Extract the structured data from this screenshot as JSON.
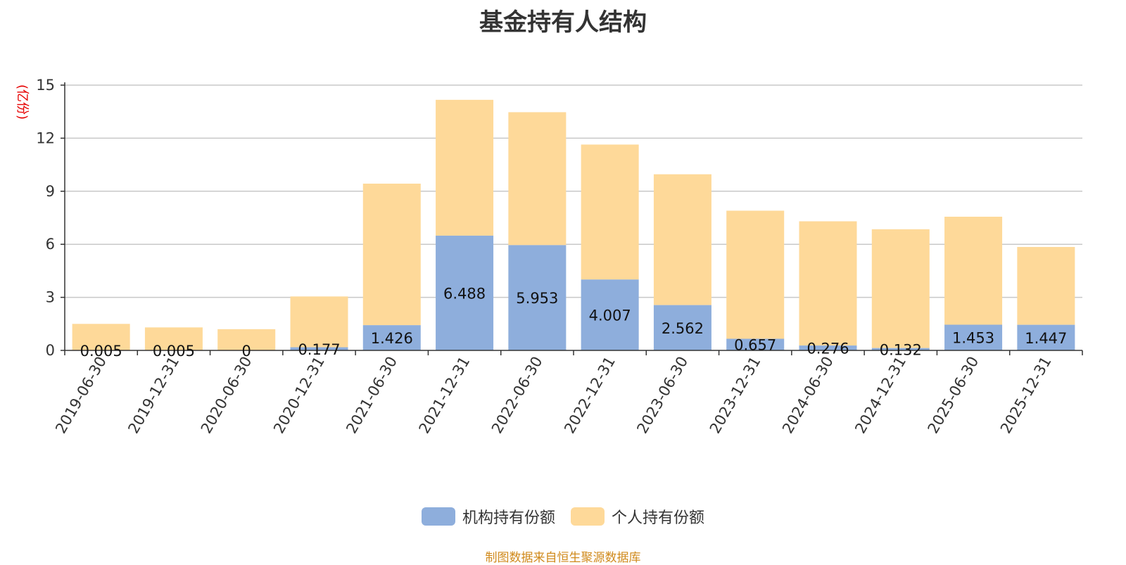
{
  "chart_data": {
    "type": "bar",
    "stacked": true,
    "title": "基金持有人结构",
    "ylabel": "(亿份)",
    "ylim": [
      0,
      15
    ],
    "yticks": [
      0,
      3,
      6,
      9,
      12,
      15
    ],
    "grid": true,
    "legend_position": "bottom",
    "categories": [
      "2019-06-30",
      "2019-12-31",
      "2020-06-30",
      "2020-12-31",
      "2021-06-30",
      "2021-12-31",
      "2022-06-30",
      "2022-12-31",
      "2023-06-30",
      "2023-12-31",
      "2024-06-30",
      "2024-12-31",
      "2025-06-30",
      "2025-12-31"
    ],
    "series": [
      {
        "name": "机构持有份额",
        "color": "#8eaedc",
        "values": [
          0.005,
          0.005,
          0,
          0.177,
          1.426,
          6.488,
          5.953,
          4.007,
          2.562,
          0.657,
          0.276,
          0.132,
          1.453,
          1.447
        ],
        "labels": [
          "0.005",
          "0.005",
          "0",
          "0.177",
          "1.426",
          "6.488",
          "5.953",
          "4.007",
          "2.562",
          "0.657",
          "0.276",
          "0.132",
          "1.453",
          "1.447"
        ]
      },
      {
        "name": "个人持有份额",
        "color": "#fed999",
        "values": [
          1.495,
          1.295,
          1.2,
          2.873,
          8.004,
          7.682,
          7.517,
          7.633,
          7.398,
          7.243,
          7.024,
          6.718,
          6.107,
          4.403
        ]
      }
    ]
  },
  "source_note": "制图数据来自恒生聚源数据库"
}
